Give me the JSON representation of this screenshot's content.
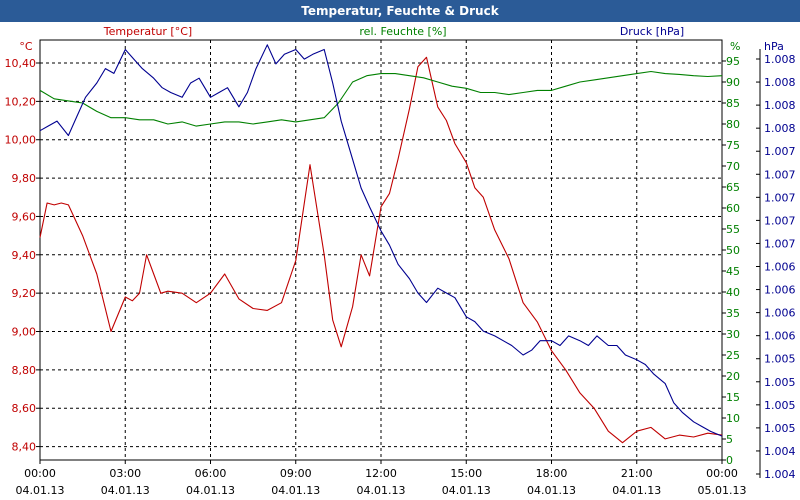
{
  "window": {
    "title": "Temperatur, Feuchte & Druck"
  },
  "colors": {
    "title_bar": "#2b5b97",
    "temperature": "#c00000",
    "humidity": "#008000",
    "pressure": "#000090",
    "grid": "#000000"
  },
  "chart_data": {
    "type": "line",
    "title": "Temperatur, Feuchte & Druck",
    "grid": true,
    "x_ticks": [
      {
        "time": "00:00",
        "date": "04.01.13"
      },
      {
        "time": "03:00",
        "date": "04.01.13"
      },
      {
        "time": "06:00",
        "date": "04.01.13"
      },
      {
        "time": "09:00",
        "date": "04.01.13"
      },
      {
        "time": "12:00",
        "date": "04.01.13"
      },
      {
        "time": "15:00",
        "date": "04.01.13"
      },
      {
        "time": "18:00",
        "date": "04.01.13"
      },
      {
        "time": "21:00",
        "date": "04.01.13"
      },
      {
        "time": "00:00",
        "date": "05.01.13"
      }
    ],
    "x_hours_range": [
      0,
      24
    ],
    "axes": {
      "left": {
        "unit": "°C",
        "ylim": [
          8.33,
          10.52
        ],
        "ticks": [
          "10,40",
          "10,20",
          "10,00",
          "9,80",
          "9,60",
          "9,40",
          "9,20",
          "9,00",
          "8,80",
          "8,60",
          "8,40"
        ]
      },
      "middle": {
        "unit": "%",
        "ylim": [
          0,
          100
        ],
        "ticks": [
          "95",
          "90",
          "85",
          "80",
          "75",
          "70",
          "65",
          "60",
          "55",
          "50",
          "45",
          "40",
          "35",
          "30",
          "25",
          "20",
          "15",
          "10",
          "5",
          "0"
        ]
      },
      "right": {
        "unit": "hPa",
        "ylim": [
          1004.0,
          1008.4
        ],
        "ticks": [
          "1.008",
          "1.008",
          "1.008",
          "1.008",
          "1.007",
          "1.007",
          "1.007",
          "1.007",
          "1.007",
          "1.006",
          "1.006",
          "1.006",
          "1.006",
          "1.005",
          "1.005",
          "1.005",
          "1.005",
          "1.004",
          "1.004"
        ]
      }
    },
    "series": [
      {
        "name": "Temperatur [°C]",
        "axis": "left",
        "color": "#c00000",
        "x": [
          0,
          0.25,
          0.5,
          0.75,
          1,
          1.5,
          2,
          2.5,
          3,
          3.25,
          3.5,
          3.75,
          4,
          4.25,
          4.5,
          5,
          5.5,
          6,
          6.5,
          7,
          7.5,
          8,
          8.5,
          9,
          9.5,
          10,
          10.3,
          10.6,
          11,
          11.3,
          11.6,
          12,
          12.3,
          12.6,
          13,
          13.3,
          13.6,
          14,
          14.3,
          14.6,
          15,
          15.3,
          15.6,
          16,
          16.5,
          17,
          17.5,
          18,
          18.5,
          19,
          19.5,
          20,
          20.5,
          21,
          21.5,
          22,
          22.5,
          23,
          23.5,
          24
        ],
        "values": [
          9.49,
          9.67,
          9.66,
          9.67,
          9.66,
          9.5,
          9.3,
          9.0,
          9.18,
          9.16,
          9.2,
          9.4,
          9.3,
          9.2,
          9.21,
          9.2,
          9.15,
          9.2,
          9.3,
          9.17,
          9.12,
          9.11,
          9.15,
          9.37,
          9.87,
          9.4,
          9.06,
          8.92,
          9.13,
          9.4,
          9.29,
          9.65,
          9.72,
          9.9,
          10.16,
          10.38,
          10.43,
          10.17,
          10.1,
          9.98,
          9.88,
          9.75,
          9.7,
          9.53,
          9.38,
          9.15,
          9.05,
          8.9,
          8.8,
          8.68,
          8.6,
          8.48,
          8.42,
          8.48,
          8.5,
          8.44,
          8.46,
          8.45,
          8.47,
          8.46
        ]
      },
      {
        "name": "rel. Feuchte [%]",
        "axis": "middle",
        "color": "#008000",
        "x": [
          0,
          0.5,
          1,
          1.5,
          2,
          2.5,
          3,
          3.5,
          4,
          4.5,
          5,
          5.5,
          6,
          6.5,
          7,
          7.5,
          8,
          8.5,
          9,
          9.5,
          10,
          10.5,
          11,
          11.5,
          12,
          12.5,
          13,
          13.5,
          14,
          14.5,
          15,
          15.5,
          16,
          16.5,
          17,
          17.5,
          18,
          18.5,
          19,
          19.5,
          20,
          20.5,
          21,
          21.5,
          22,
          22.5,
          23,
          23.5,
          24
        ],
        "values": [
          88,
          86,
          85.5,
          85,
          83,
          81.5,
          81.5,
          81,
          81,
          80,
          80.5,
          79.5,
          80,
          80.5,
          80.5,
          80,
          80.5,
          81,
          80.5,
          81,
          81.5,
          85,
          90,
          91.5,
          92,
          92,
          91.5,
          91,
          90,
          89,
          88.5,
          87.5,
          87.5,
          87,
          87.5,
          88,
          88,
          89,
          90,
          90.5,
          91,
          91.5,
          92,
          92.5,
          92,
          91.8,
          91.5,
          91.3,
          91.5
        ]
      },
      {
        "name": "Druck [hPa]",
        "axis": "right",
        "color": "#000090",
        "x": [
          0,
          0.3,
          0.6,
          1,
          1.3,
          1.6,
          2,
          2.3,
          2.6,
          3,
          3.3,
          3.6,
          4,
          4.3,
          4.6,
          5,
          5.3,
          5.6,
          6,
          6.3,
          6.6,
          7,
          7.3,
          7.6,
          8,
          8.3,
          8.6,
          9,
          9.3,
          9.6,
          10,
          10.3,
          10.6,
          11,
          11.3,
          11.6,
          12,
          12.3,
          12.6,
          13,
          13.3,
          13.6,
          14,
          14.3,
          14.6,
          15,
          15.3,
          15.6,
          16,
          16.3,
          16.6,
          17,
          17.3,
          17.6,
          18,
          18.3,
          18.6,
          19,
          19.3,
          19.6,
          20,
          20.3,
          20.6,
          21,
          21.3,
          21.6,
          22,
          22.3,
          22.6,
          23,
          23.3,
          23.6,
          24
        ],
        "values": [
          1007.45,
          1007.5,
          1007.55,
          1007.4,
          1007.6,
          1007.8,
          1007.95,
          1008.1,
          1008.05,
          1008.3,
          1008.2,
          1008.1,
          1008.0,
          1007.9,
          1007.85,
          1007.8,
          1007.95,
          1008.0,
          1007.8,
          1007.85,
          1007.9,
          1007.7,
          1007.85,
          1008.1,
          1008.35,
          1008.15,
          1008.25,
          1008.3,
          1008.2,
          1008.25,
          1008.3,
          1007.95,
          1007.55,
          1007.15,
          1006.85,
          1006.65,
          1006.4,
          1006.25,
          1006.05,
          1005.9,
          1005.75,
          1005.65,
          1005.8,
          1005.75,
          1005.7,
          1005.5,
          1005.45,
          1005.35,
          1005.3,
          1005.25,
          1005.2,
          1005.1,
          1005.15,
          1005.25,
          1005.25,
          1005.2,
          1005.3,
          1005.25,
          1005.2,
          1005.3,
          1005.2,
          1005.2,
          1005.1,
          1005.05,
          1005.0,
          1004.9,
          1004.8,
          1004.6,
          1004.5,
          1004.4,
          1004.35,
          1004.3,
          1004.25
        ]
      }
    ]
  }
}
